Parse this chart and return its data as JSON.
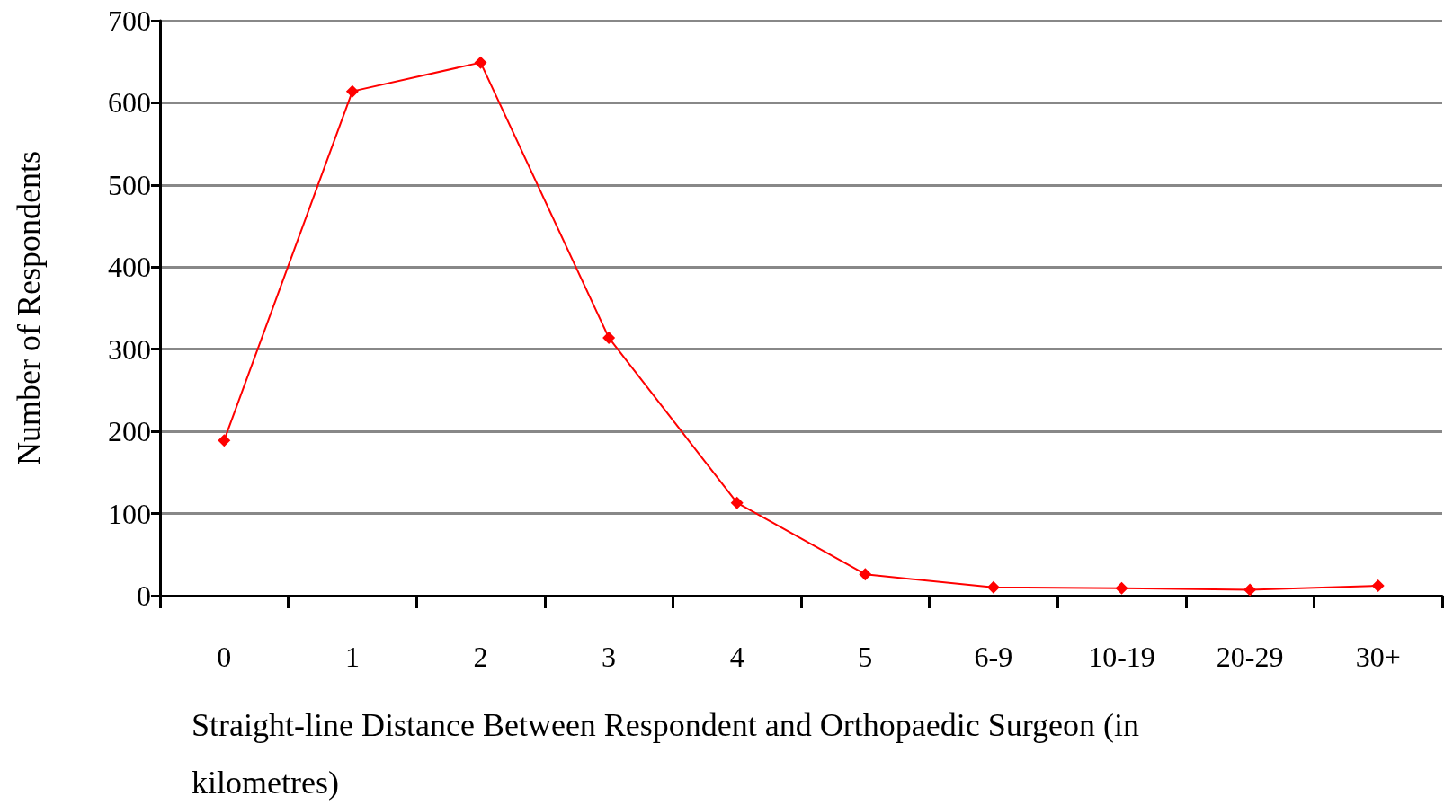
{
  "chart_data": {
    "type": "line",
    "xlabel": "Straight-line Distance Between Respondent and Orthopaedic Surgeon (in kilometres)",
    "ylabel": "Number of Respondents",
    "categories": [
      "0",
      "1",
      "2",
      "3",
      "4",
      "5",
      "6-9",
      "10-19",
      "20-29",
      "30+"
    ],
    "series": [
      {
        "color": "#ff0000",
        "values": [
          189,
          614,
          649,
          314,
          113,
          26,
          10,
          9,
          7,
          12
        ]
      }
    ],
    "ylim": [
      0,
      700
    ],
    "yticks": [
      0,
      100,
      200,
      300,
      400,
      500,
      600,
      700
    ],
    "grid": "y",
    "marker": "diamond",
    "line_style": "solid"
  }
}
